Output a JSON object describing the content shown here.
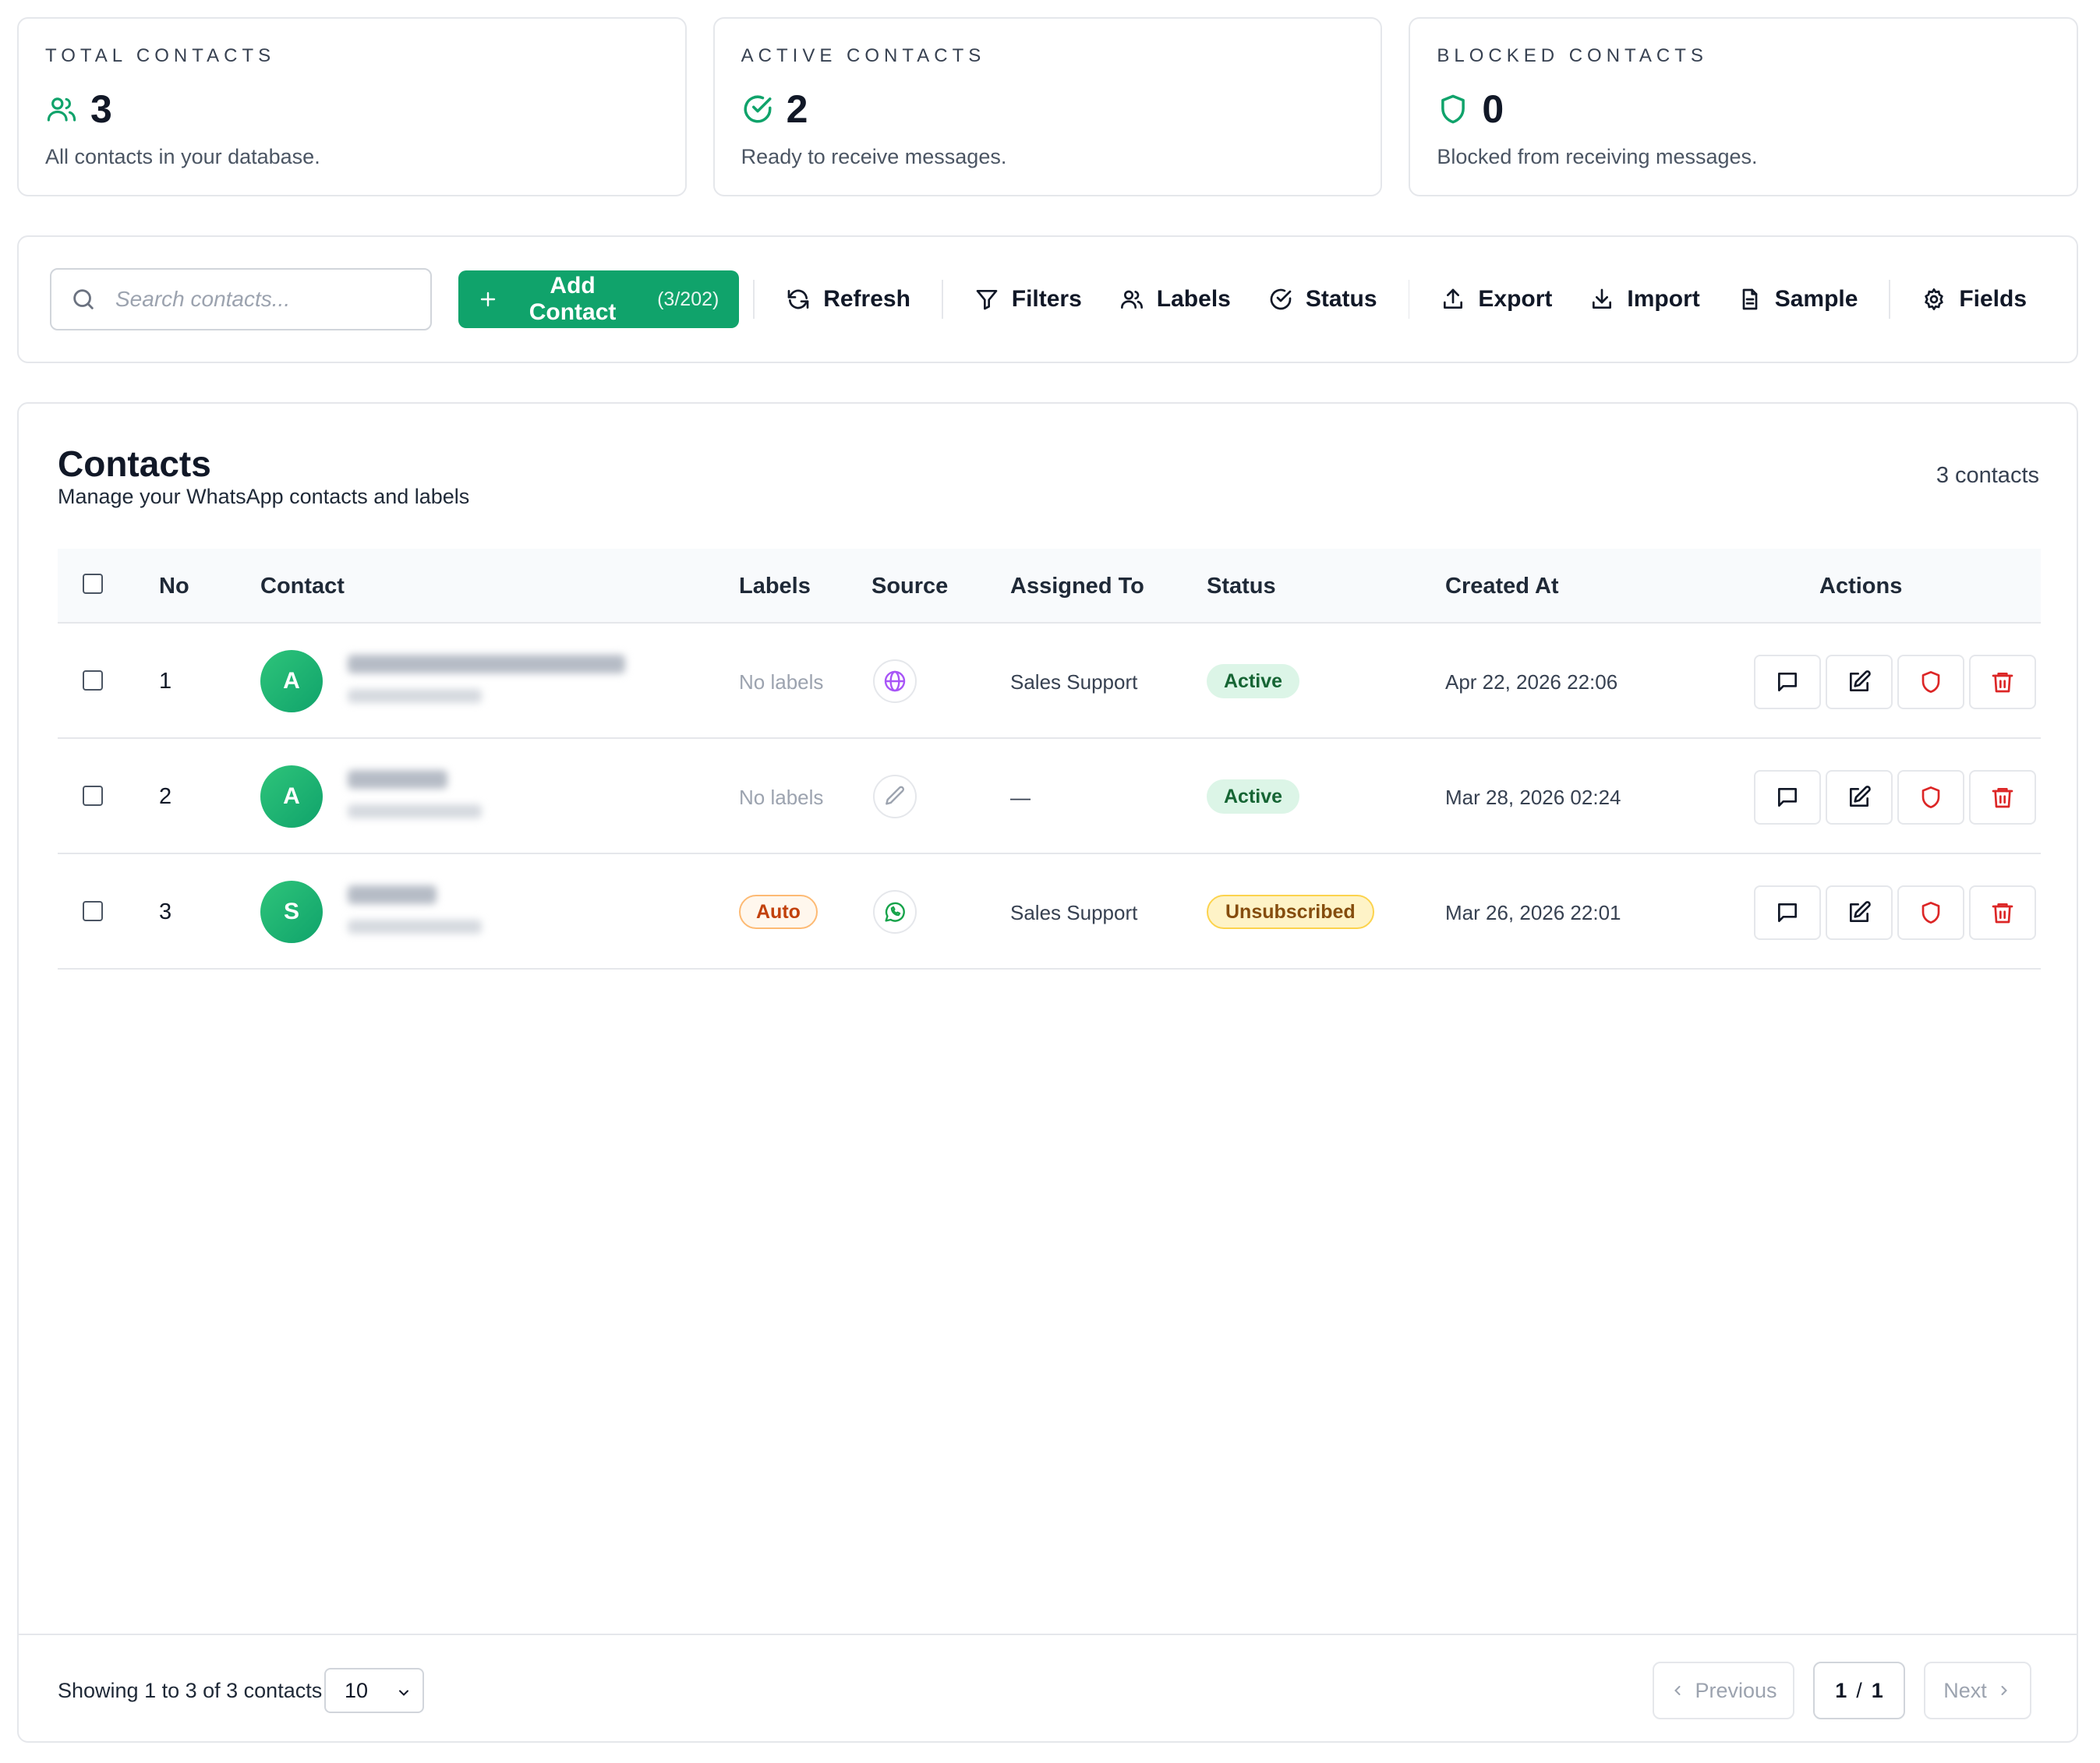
{
  "stats": [
    {
      "title": "TOTAL CONTACTS",
      "value": "3",
      "desc": "All contacts in your database.",
      "icon": "users-icon"
    },
    {
      "title": "ACTIVE CONTACTS",
      "value": "2",
      "desc": "Ready to receive messages.",
      "icon": "check-circle-icon"
    },
    {
      "title": "BLOCKED CONTACTS",
      "value": "0",
      "desc": "Blocked from receiving messages.",
      "icon": "shield-icon"
    }
  ],
  "toolbar": {
    "search_placeholder": "Search contacts...",
    "add_label": "Add Contact",
    "add_count": "(3/202)",
    "refresh": "Refresh",
    "filters": "Filters",
    "labels": "Labels",
    "status": "Status",
    "export": "Export",
    "import": "Import",
    "sample": "Sample",
    "fields": "Fields"
  },
  "panel": {
    "title": "Contacts",
    "subtitle": "Manage your WhatsApp contacts and labels",
    "count": "3 contacts"
  },
  "columns": {
    "no": "No",
    "contact": "Contact",
    "labels": "Labels",
    "source": "Source",
    "assigned": "Assigned To",
    "status": "Status",
    "created": "Created At",
    "actions": "Actions"
  },
  "rows": [
    {
      "no": "1",
      "initial": "A",
      "labels": "No labels",
      "source_icon": "globe-icon",
      "assigned": "Sales Support",
      "status": "Active",
      "created": "Apr 22, 2026 22:06"
    },
    {
      "no": "2",
      "initial": "A",
      "labels": "No labels",
      "source_icon": "pencil-icon",
      "assigned": "—",
      "status": "Active",
      "created": "Mar 28, 2026 02:24"
    },
    {
      "no": "3",
      "initial": "S",
      "labels": "Auto",
      "source_icon": "whatsapp-icon",
      "assigned": "Sales Support",
      "status": "Unsubscribed",
      "created": "Mar 26, 2026 22:01"
    }
  ],
  "footer": {
    "showing": "Showing 1 to 3 of 3 contacts",
    "per_page": "10",
    "previous": "Previous",
    "page": "1",
    "page_sep": "/",
    "total_pages": "1",
    "next": "Next"
  },
  "colors": {
    "brand": "#10a36b",
    "danger": "#dc2626",
    "active_bg": "#dcf5e7",
    "unsub_bg": "#fef3c7",
    "label_auto": "#c2410c",
    "globe": "#a855f7",
    "whatsapp": "#16a34a"
  }
}
